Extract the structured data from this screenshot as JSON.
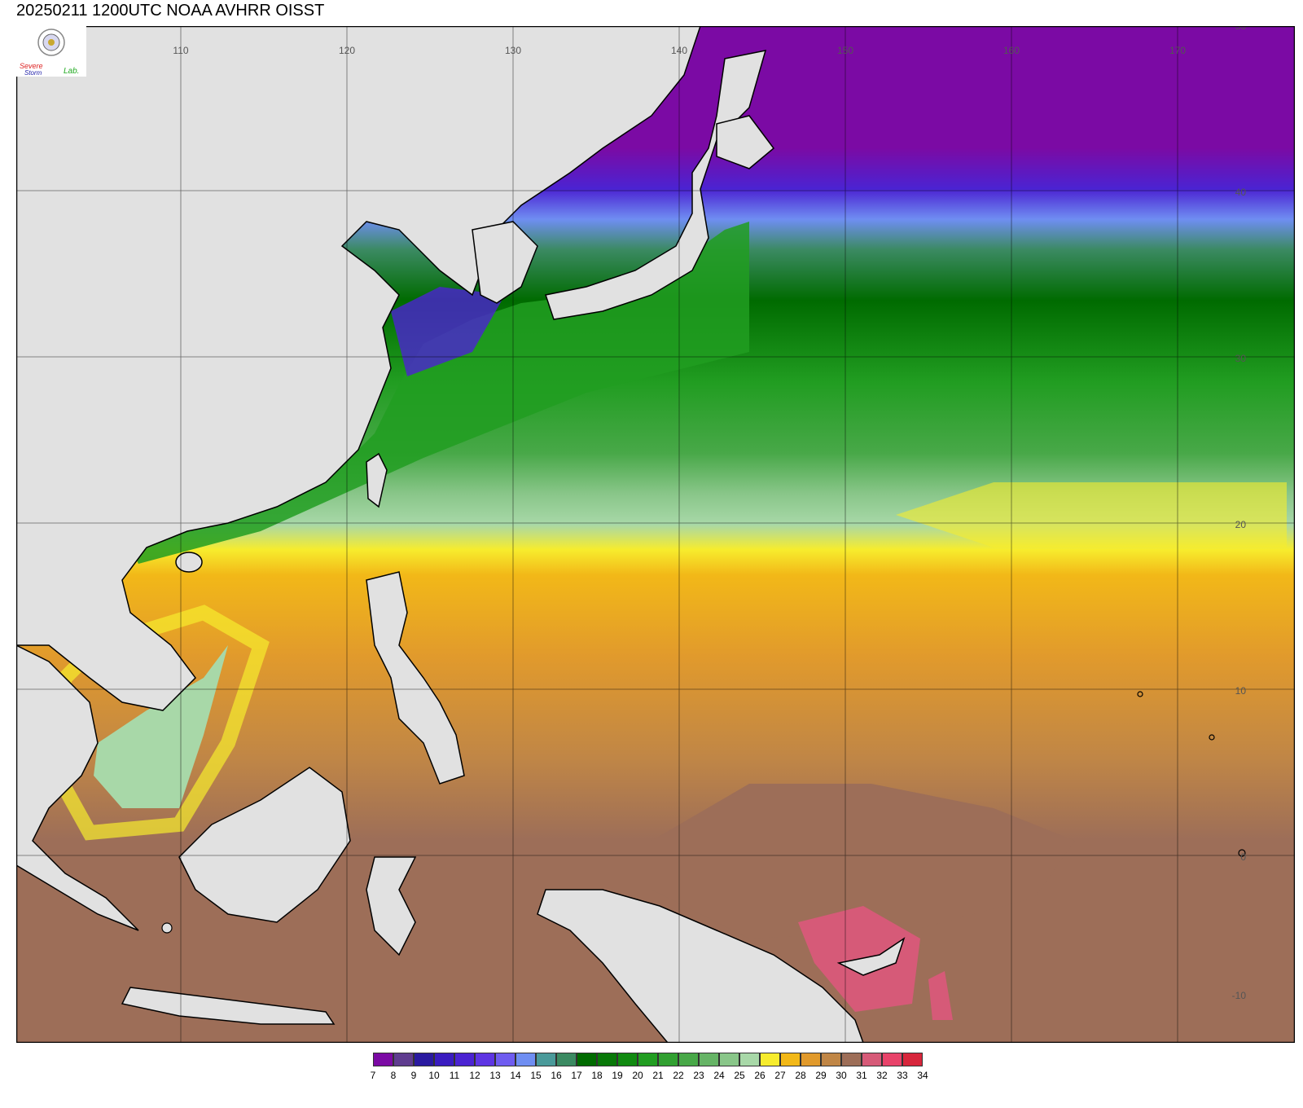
{
  "title": "20250211 1200UTC NOAA AVHRR OISST",
  "logo": {
    "text_severe": "Severe",
    "text_storm": "Storm",
    "text_lab": "Lab."
  },
  "axes": {
    "lon_labels": [
      "110",
      "120",
      "130",
      "140",
      "150",
      "160",
      "170"
    ],
    "lat_labels": [
      "50",
      "40",
      "30",
      "20",
      "10",
      "0",
      "-10"
    ],
    "lon_range": [
      100,
      176
    ],
    "lat_range": [
      -10,
      50
    ]
  },
  "colorbar": {
    "labels": [
      "7",
      "8",
      "9",
      "10",
      "11",
      "12",
      "13",
      "14",
      "15",
      "16",
      "17",
      "18",
      "19",
      "20",
      "21",
      "22",
      "23",
      "24",
      "25",
      "26",
      "27",
      "28",
      "29",
      "30",
      "31",
      "32",
      "33",
      "34"
    ],
    "colors": [
      "#7b0aa4",
      "#5f3c8f",
      "#2a1aa0",
      "#3a1cc0",
      "#4b23d2",
      "#5e35e3",
      "#6f5cf0",
      "#6f8ef2",
      "#4a9a9a",
      "#3b8a62",
      "#006b00",
      "#087808",
      "#108a10",
      "#219d21",
      "#31a031",
      "#48a848",
      "#66b466",
      "#89c689",
      "#a8d8a8",
      "#f7ec2d",
      "#f2b818",
      "#e19a2c",
      "#c08646",
      "#9d6e58",
      "#d65a78",
      "#e8436a",
      "#d7263c"
    ]
  },
  "colors": {
    "land": "#e1e1e1",
    "border": "#000000"
  }
}
